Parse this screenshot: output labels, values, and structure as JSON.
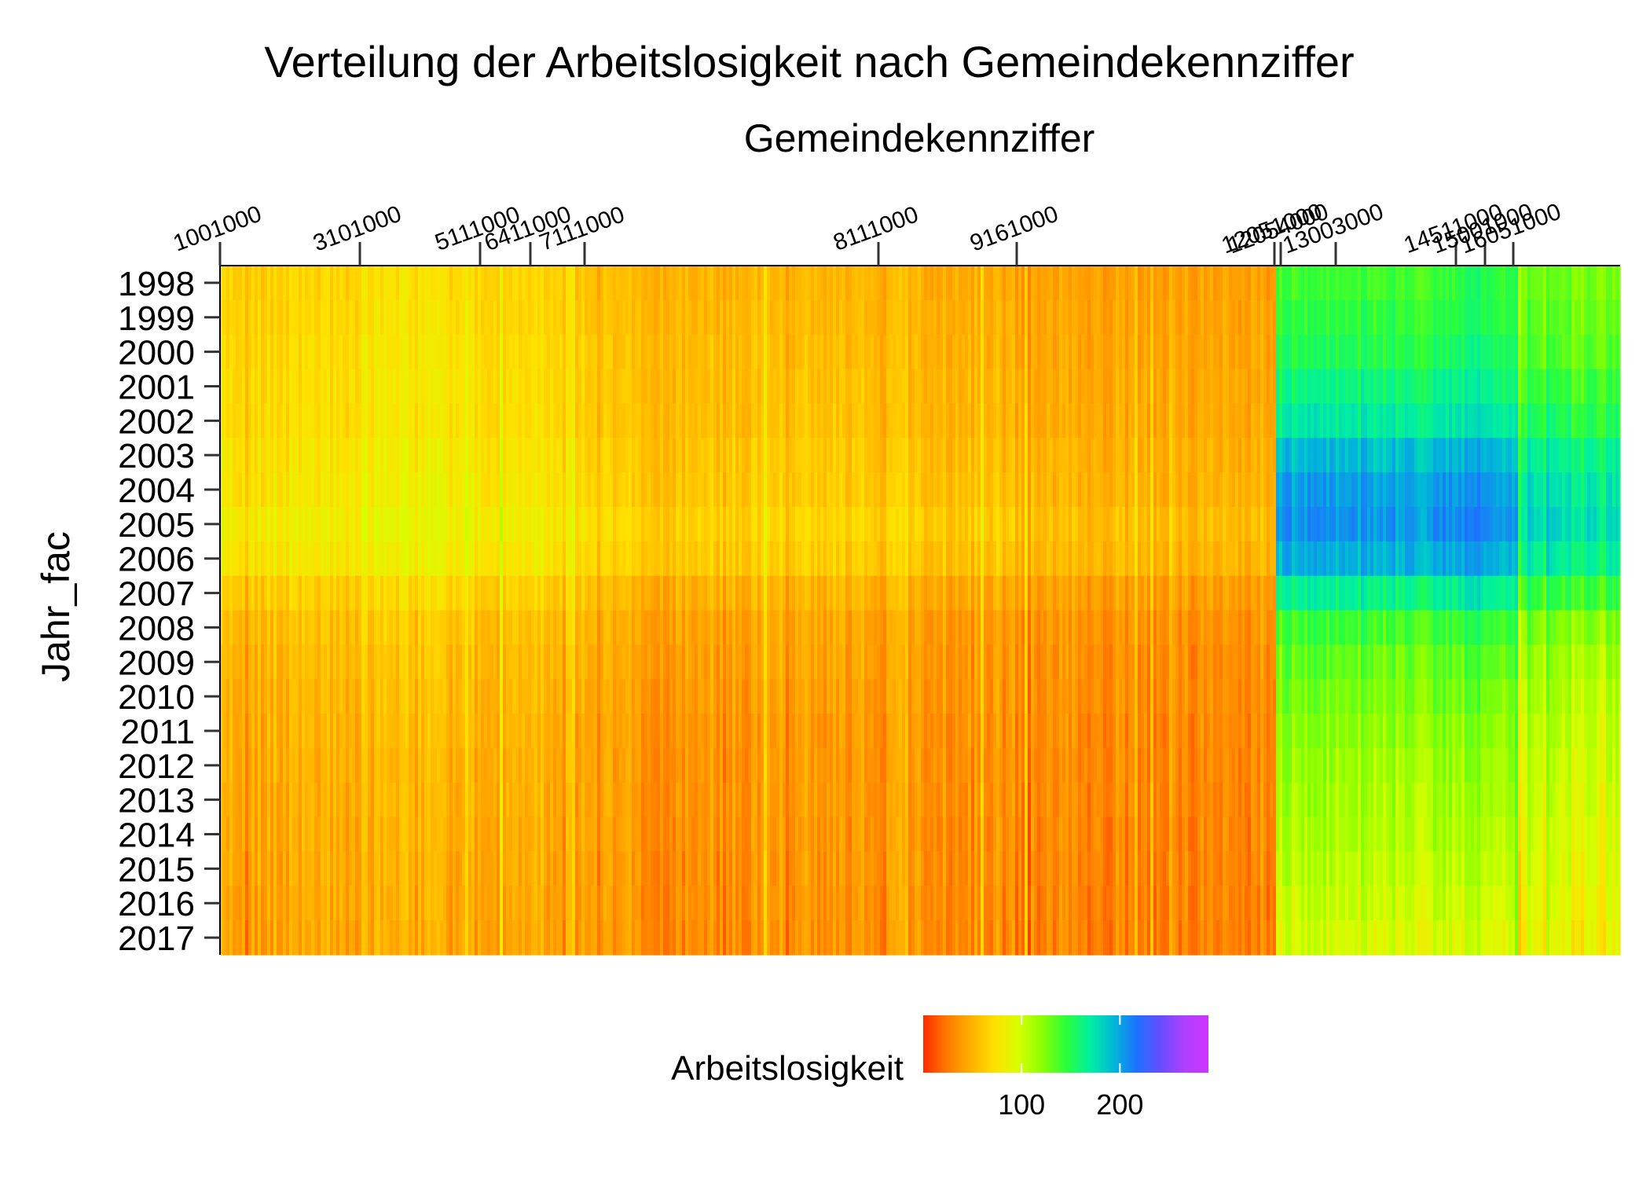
{
  "chart_data": {
    "type": "heatmap",
    "title": "Verteilung der Arbeitslosigkeit nach Gemeindekennziffer",
    "xlabel": "Gemeindekennziffer",
    "ylabel": "Jahr_fac",
    "x_axis_position": "top",
    "x_tick_labels": [
      "1001000",
      "3101000",
      "5111000",
      "6411000",
      "7111000",
      "8111000",
      "9161000",
      "12051000",
      "12054000",
      "13003000",
      "14511000",
      "15001000",
      "16051000"
    ],
    "x_tick_values": [
      1001000,
      3101000,
      5111000,
      6411000,
      7111000,
      8111000,
      9161000,
      12051000,
      12054000,
      13003000,
      14511000,
      15001000,
      16051000
    ],
    "y_categories": [
      "1998",
      "1999",
      "2000",
      "2001",
      "2002",
      "2003",
      "2004",
      "2005",
      "2006",
      "2007",
      "2008",
      "2009",
      "2010",
      "2011",
      "2012",
      "2013",
      "2014",
      "2015",
      "2016",
      "2017"
    ],
    "legend": {
      "title": "Arbeitslosigkeit",
      "position": "bottom",
      "ticks": [
        100,
        200
      ],
      "range": [
        0,
        290
      ],
      "colors": [
        "#ff2a00",
        "#ff7a00",
        "#ffb000",
        "#ffe000",
        "#d7ff00",
        "#8cff00",
        "#2aff3a",
        "#00f0a0",
        "#00b8d8",
        "#1e70ff",
        "#6a4cff",
        "#b040ff",
        "#cc33ff"
      ]
    },
    "regions": [
      {
        "from": "1001000",
        "to": "3101000",
        "base": [
          65,
          66,
          68,
          70,
          70,
          74,
          75,
          80,
          76,
          62,
          55,
          52,
          50,
          48,
          47,
          46,
          45,
          44,
          43,
          42
        ]
      },
      {
        "from": "3101000",
        "to": "5111000",
        "base": [
          72,
          73,
          75,
          76,
          76,
          80,
          82,
          86,
          82,
          68,
          60,
          56,
          54,
          52,
          50,
          50,
          48,
          47,
          46,
          45
        ]
      },
      {
        "from": "5111000",
        "to": "7111000",
        "base": [
          66,
          67,
          69,
          70,
          70,
          74,
          76,
          80,
          76,
          63,
          56,
          53,
          51,
          49,
          48,
          47,
          46,
          45,
          44,
          43
        ]
      },
      {
        "from": "7111000",
        "to": "8111000",
        "base": [
          52,
          53,
          55,
          56,
          56,
          60,
          61,
          66,
          62,
          50,
          44,
          42,
          40,
          38,
          37,
          37,
          36,
          35,
          35,
          34
        ]
      },
      {
        "from": "8111000",
        "to": "9161000",
        "base": [
          48,
          49,
          50,
          52,
          52,
          55,
          57,
          62,
          58,
          46,
          40,
          38,
          37,
          36,
          35,
          35,
          34,
          34,
          33,
          33
        ]
      },
      {
        "from": "9161000",
        "to": "12051000",
        "base": [
          42,
          43,
          44,
          46,
          46,
          49,
          51,
          55,
          52,
          41,
          36,
          34,
          33,
          32,
          31,
          31,
          30,
          30,
          29,
          29
        ]
      },
      {
        "from": "12051000",
        "to": "14511000",
        "base": [
          140,
          145,
          150,
          160,
          170,
          190,
          200,
          205,
          195,
          165,
          140,
          130,
          125,
          120,
          115,
          112,
          110,
          105,
          100,
          95
        ]
      },
      {
        "from": "14511000",
        "to": "16051000",
        "base": [
          150,
          152,
          158,
          165,
          175,
          195,
          205,
          210,
          200,
          170,
          145,
          135,
          128,
          122,
          118,
          114,
          110,
          106,
          100,
          96
        ]
      },
      {
        "from": "16051000",
        "to": "end",
        "base": [
          125,
          128,
          132,
          140,
          148,
          162,
          170,
          175,
          165,
          140,
          120,
          112,
          106,
          102,
          98,
          95,
          92,
          90,
          86,
          82
        ]
      }
    ]
  }
}
